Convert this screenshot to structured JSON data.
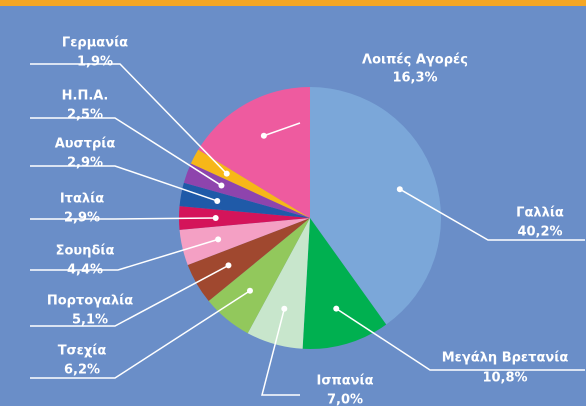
{
  "chart_data": {
    "type": "pie",
    "categories": [
      "Γαλλία",
      "Μεγάλη Βρετανία",
      "Ισπανία",
      "Τσεχία",
      "Πορτογαλία",
      "Σουηδία",
      "Ιταλία",
      "Αυστρία",
      "Η.Π.Α.",
      "Γερμανία",
      "Λοιπές Αγορές"
    ],
    "values": [
      40.2,
      10.8,
      7.0,
      6.2,
      5.1,
      4.4,
      2.9,
      2.9,
      2.5,
      1.9,
      16.3
    ],
    "value_labels": [
      "40,2%",
      "10,8%",
      "7,0%",
      "6,2%",
      "5,1%",
      "4,4%",
      "2,9%",
      "2,9%",
      "2,5%",
      "1,9%",
      "16,3%"
    ],
    "colors": [
      "#7ba7d9",
      "#00b050",
      "#c8e6cc",
      "#92c85c",
      "#a0482f",
      "#f4a0c4",
      "#d4145a",
      "#1f5aa8",
      "#8e44ad",
      "#f7b718",
      "#ee5b9f"
    ]
  }
}
